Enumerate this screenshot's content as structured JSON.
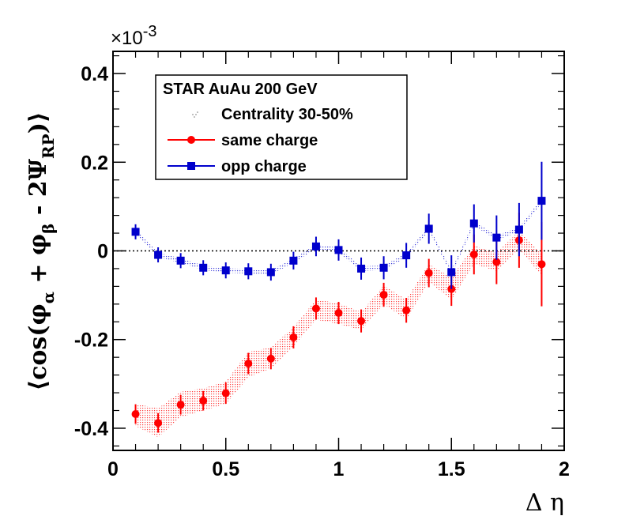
{
  "chart_data": {
    "type": "scatter",
    "title": "",
    "xlabel": "Δ η",
    "ylabel": "⟨cos(φα + φβ - 2ΨRP)⟩",
    "ylabel_parts": {
      "open": "⟨cos(φ",
      "sub_alpha": "α",
      "plus": " + φ",
      "sub_beta": "β",
      "minus": " - 2Ψ",
      "sub_rp": "RP",
      "close": ")⟩"
    },
    "y_exponent_label": "×10",
    "y_exponent_power": "-3",
    "xlim": [
      0,
      2
    ],
    "ylim": [
      -0.45,
      0.45
    ],
    "x_ticks": [
      0,
      0.5,
      1,
      1.5,
      2
    ],
    "x_tick_labels": [
      "0",
      "0.5",
      "1",
      "1.5",
      "2"
    ],
    "y_ticks": [
      -0.4,
      -0.2,
      0,
      0.2,
      0.4
    ],
    "y_tick_labels": [
      "-0.4",
      "-0.2",
      "0",
      "0.2",
      "0.4"
    ],
    "legend": {
      "header": "STAR AuAu 200 GeV",
      "band_label": "Centrality 30-50%",
      "placement": "top-left"
    },
    "series": [
      {
        "name": "same charge",
        "color": "#ff0000",
        "marker": "circle",
        "x": [
          0.1,
          0.2,
          0.3,
          0.4,
          0.5,
          0.6,
          0.7,
          0.8,
          0.9,
          1.0,
          1.1,
          1.2,
          1.3,
          1.4,
          1.5,
          1.6,
          1.7,
          1.8,
          1.9
        ],
        "y": [
          -0.368,
          -0.388,
          -0.347,
          -0.338,
          -0.321,
          -0.254,
          -0.243,
          -0.195,
          -0.13,
          -0.14,
          -0.158,
          -0.099,
          -0.134,
          -0.05,
          -0.086,
          -0.008,
          -0.025,
          0.024,
          -0.03
        ],
        "err": [
          0.022,
          0.022,
          0.022,
          0.022,
          0.024,
          0.024,
          0.024,
          0.025,
          0.025,
          0.025,
          0.026,
          0.027,
          0.028,
          0.032,
          0.038,
          0.045,
          0.05,
          0.062,
          0.095
        ],
        "band_low": [
          -0.395,
          -0.42,
          -0.375,
          -0.36,
          -0.345,
          -0.285,
          -0.265,
          -0.215,
          -0.155,
          -0.165,
          -0.178,
          -0.12,
          -0.155,
          -0.07,
          -0.11,
          -0.03,
          -0.045,
          0.004,
          -0.055
        ],
        "band_high": [
          -0.345,
          -0.355,
          -0.318,
          -0.31,
          -0.295,
          -0.228,
          -0.218,
          -0.172,
          -0.11,
          -0.118,
          -0.138,
          -0.078,
          -0.11,
          -0.03,
          -0.06,
          0.012,
          -0.005,
          0.045,
          -0.008
        ]
      },
      {
        "name": "opp charge",
        "color": "#0000cc",
        "marker": "square",
        "x": [
          0.1,
          0.2,
          0.3,
          0.4,
          0.5,
          0.6,
          0.7,
          0.8,
          0.9,
          1.0,
          1.1,
          1.2,
          1.3,
          1.4,
          1.5,
          1.6,
          1.7,
          1.8,
          1.9
        ],
        "y": [
          0.043,
          -0.009,
          -0.022,
          -0.038,
          -0.044,
          -0.046,
          -0.048,
          -0.022,
          0.01,
          0.002,
          -0.04,
          -0.038,
          -0.01,
          0.05,
          -0.048,
          0.062,
          0.03,
          0.048,
          0.113
        ],
        "err": [
          0.017,
          0.017,
          0.017,
          0.017,
          0.018,
          0.018,
          0.019,
          0.02,
          0.022,
          0.024,
          0.025,
          0.026,
          0.028,
          0.034,
          0.038,
          0.043,
          0.05,
          0.06,
          0.088
        ],
        "band_low": [
          0.038,
          -0.014,
          -0.027,
          -0.043,
          -0.049,
          -0.051,
          -0.053,
          -0.027,
          0.005,
          -0.003,
          -0.045,
          -0.043,
          -0.015,
          0.045,
          -0.053,
          0.057,
          0.025,
          0.043,
          0.108
        ],
        "band_high": [
          0.048,
          -0.004,
          -0.017,
          -0.033,
          -0.039,
          -0.041,
          -0.043,
          -0.017,
          0.015,
          0.007,
          -0.035,
          -0.033,
          -0.005,
          0.055,
          -0.043,
          0.067,
          0.035,
          0.053,
          0.118
        ]
      }
    ]
  }
}
